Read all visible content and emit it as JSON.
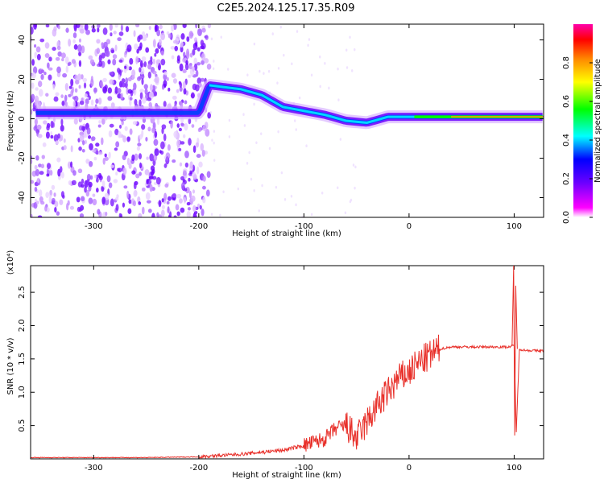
{
  "title": "C2E5.2024.125.17.35.R09",
  "chart_data": [
    {
      "type": "heatmap",
      "xlabel": "Height of straight line (km)",
      "ylabel": "Frequency (Hz)",
      "xlim": [
        -360,
        128
      ],
      "ylim": [
        -50,
        48
      ],
      "x_ticks": [
        -300,
        -200,
        -100,
        0,
        100
      ],
      "y_ticks": [
        -40,
        -20,
        0,
        20,
        40
      ],
      "colorbar": {
        "label": "Normalized spectral amplitude",
        "range": [
          0,
          1
        ],
        "ticks": [
          "0.0",
          "0.2",
          "0.4",
          "0.6",
          "0.8"
        ],
        "colors": [
          "#ffffff",
          "#ff00ff",
          "#6a00ff",
          "#0000ff",
          "#00ffff",
          "#00ff00",
          "#ffff00",
          "#ff8800",
          "#ff0000",
          "#ff00aa"
        ]
      },
      "ridge": [
        {
          "x": -355,
          "y": 3
        },
        {
          "x": -300,
          "y": 3
        },
        {
          "x": -250,
          "y": 3
        },
        {
          "x": -200,
          "y": 3
        },
        {
          "x": -190,
          "y": 17
        },
        {
          "x": -160,
          "y": 15
        },
        {
          "x": -140,
          "y": 12
        },
        {
          "x": -120,
          "y": 6
        },
        {
          "x": -100,
          "y": 4
        },
        {
          "x": -80,
          "y": 2
        },
        {
          "x": -60,
          "y": -1
        },
        {
          "x": -40,
          "y": -2
        },
        {
          "x": -20,
          "y": 1
        },
        {
          "x": 0,
          "y": 1
        },
        {
          "x": 50,
          "y": 1
        },
        {
          "x": 128,
          "y": 1
        }
      ]
    },
    {
      "type": "line",
      "xlabel": "Height of straight line (km)",
      "ylabel": "SNR (10 * v/v)",
      "y_scale_label": "(x10⁴)",
      "xlim": [
        -360,
        128
      ],
      "ylim": [
        0,
        2.9
      ],
      "x_ticks": [
        -300,
        -200,
        -100,
        0,
        100
      ],
      "y_ticks": [
        "0.5",
        "1.0",
        "1.5",
        "2.0",
        "2.5"
      ],
      "series": [
        {
          "color": "#e8302a",
          "x": [
            -360,
            -300,
            -250,
            -200,
            -180,
            -160,
            -140,
            -120,
            -100,
            -90,
            -80,
            -70,
            -60,
            -50,
            -40,
            -30,
            -25,
            -20,
            -15,
            -10,
            -5,
            0,
            10,
            20,
            30,
            40,
            60,
            80,
            95,
            100,
            102,
            105,
            110,
            128
          ],
          "y": [
            0.02,
            0.02,
            0.02,
            0.03,
            0.05,
            0.07,
            0.1,
            0.13,
            0.2,
            0.25,
            0.3,
            0.45,
            0.5,
            0.3,
            0.55,
            0.8,
            0.9,
            1.0,
            1.1,
            1.2,
            1.25,
            1.3,
            1.45,
            1.55,
            1.65,
            1.68,
            1.68,
            1.68,
            1.68,
            1.7,
            0.4,
            1.65,
            1.63,
            1.62
          ]
        }
      ]
    }
  ]
}
